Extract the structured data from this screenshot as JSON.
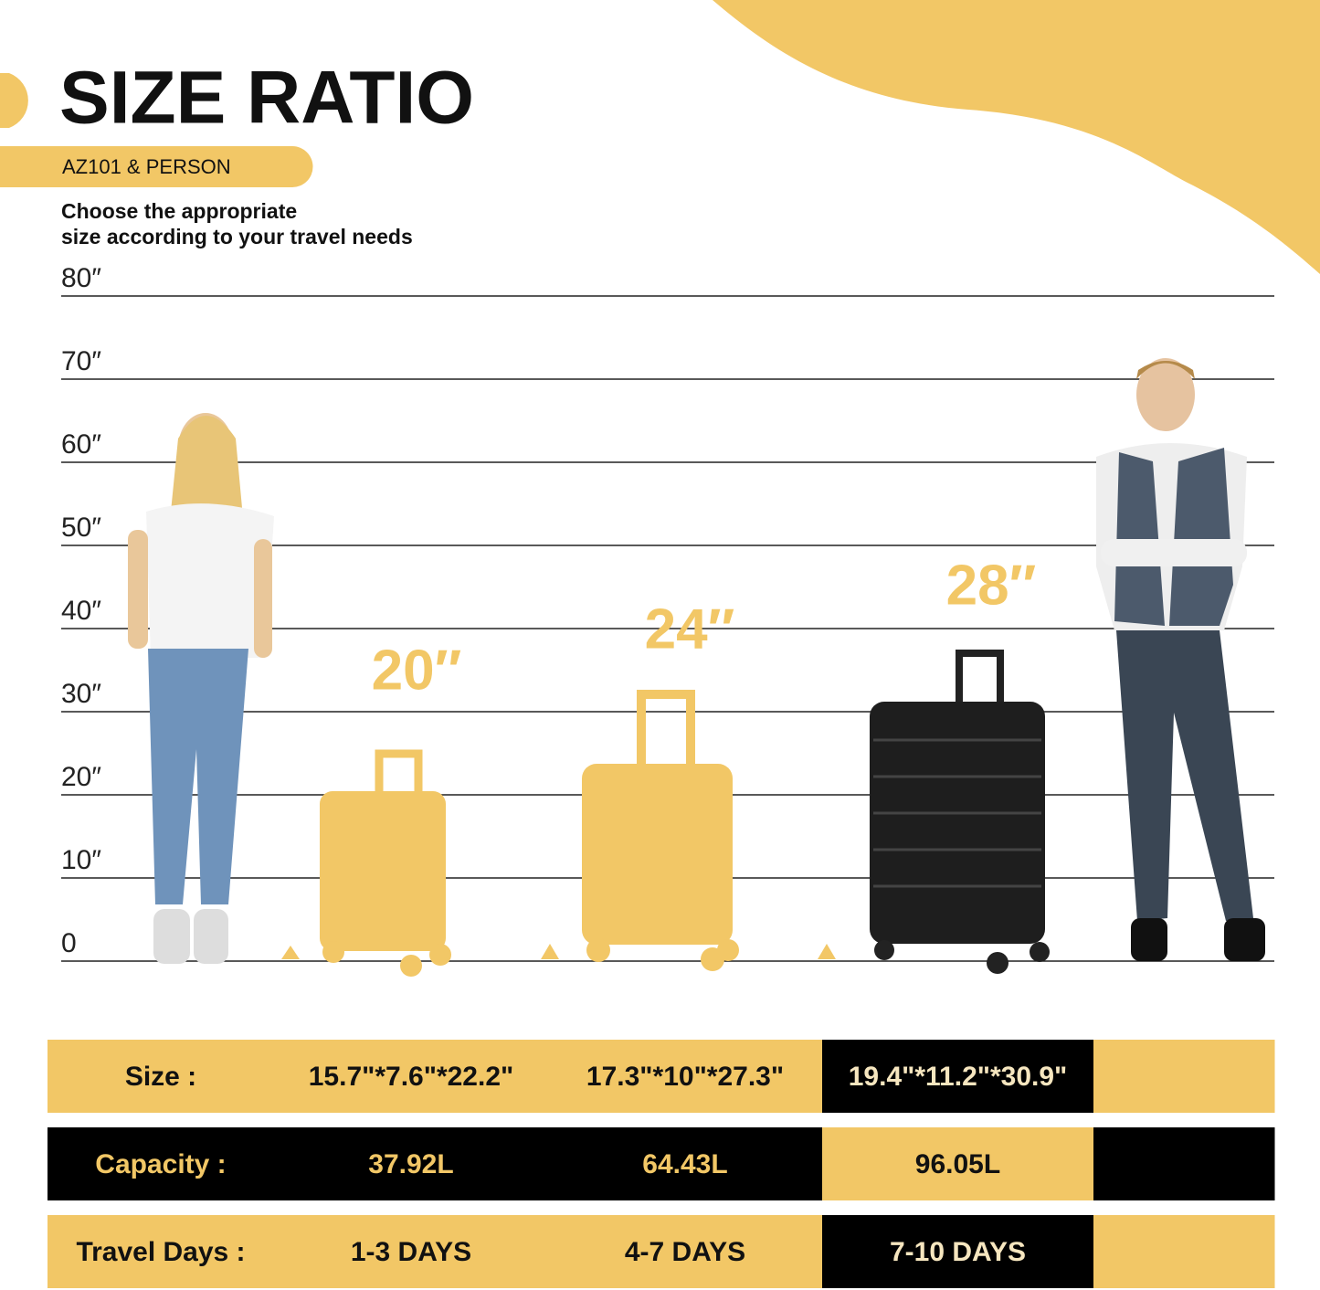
{
  "header": {
    "title": "SIZE RATIO",
    "tag": "AZ101 & PERSON",
    "intro": [
      "Choose the appropriate",
      "size according to your travel needs"
    ]
  },
  "scale": {
    "labels": [
      "80″",
      "70″",
      "60″",
      "50″",
      "40″",
      "30″",
      "20″",
      "10″",
      "0"
    ]
  },
  "suitcases": [
    {
      "label": "20″"
    },
    {
      "label": "24″"
    },
    {
      "label": "28″"
    }
  ],
  "table": {
    "rows": [
      [
        "Size :",
        "15.7\"*7.6\"*22.2\"",
        "17.3\"*10\"*27.3\"",
        "19.4\"*11.2\"*30.9\""
      ],
      [
        "Capacity :",
        "37.92L",
        "64.43L",
        "96.05L"
      ],
      [
        "Travel Days :",
        "1-3 DAYS",
        "4-7 DAYS",
        "7-10 DAYS"
      ]
    ]
  }
}
